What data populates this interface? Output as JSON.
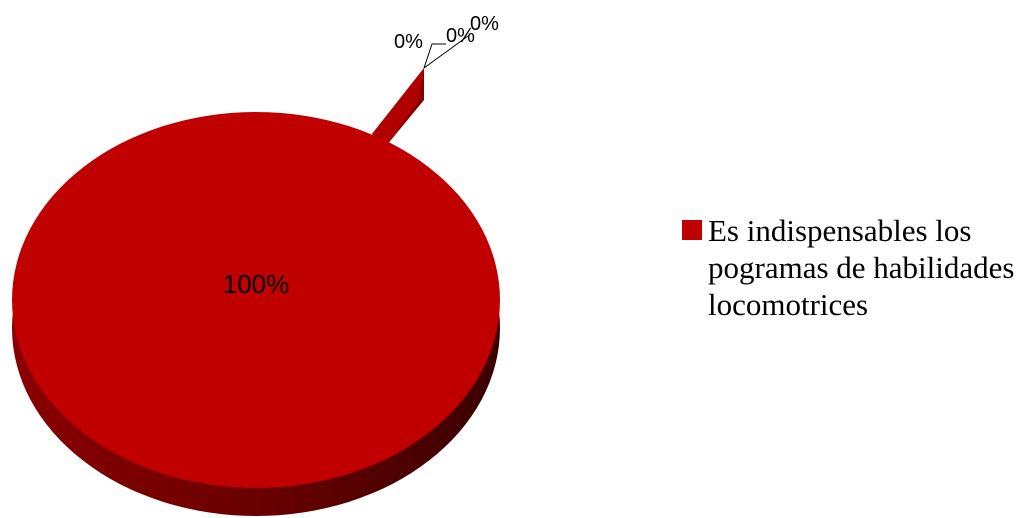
{
  "chart_data": {
    "type": "pie",
    "title": "",
    "slices": [
      {
        "label": "Es indispensables los pogramas de habilidades locomotrices",
        "value": 100,
        "data_label": "100%",
        "color": "#c00000"
      },
      {
        "label": "",
        "value": 0,
        "data_label": "0%",
        "color": "#c00000"
      },
      {
        "label": "",
        "value": 0,
        "data_label": "0%",
        "color": "#c00000"
      },
      {
        "label": "",
        "value": 0,
        "data_label": "0%",
        "color": "#c00000"
      }
    ],
    "legend": {
      "position": "right",
      "entries": [
        "Es indispensables los pogramas de habilidades locomotrices"
      ]
    },
    "style": "3d-exploded"
  }
}
